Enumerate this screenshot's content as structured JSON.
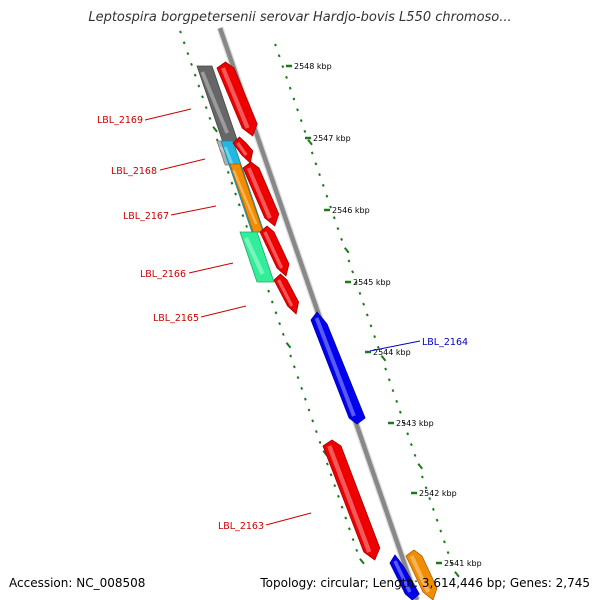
{
  "title": "Leptospira borgpetersenii serovar Hardjo-bovis L550 chromoso...",
  "footer": {
    "accession": "Accession: NC_008508",
    "topology": "Topology: circular; Length: 3,614,446 bp; Genes: 2,745"
  },
  "colors": {
    "backbone": "#888888",
    "forward_strand_label": "#cc0000",
    "reverse_strand_label": "#0000bb",
    "tick": "#1a7a1a",
    "gene_red": "#ee0000",
    "gene_blue": "#0000ee",
    "gene_gray": "#666666",
    "gene_cyan": "#22b8e0",
    "gene_orange": "#f28c00",
    "gene_green": "#33ee99",
    "gene_lightgray": "#b0b0b0"
  },
  "scale": {
    "tick_labels": [
      "2548 kbp",
      "2547 kbp",
      "2546 kbp",
      "2545 kbp",
      "2544 kbp",
      "2543 kbp",
      "2542 kbp",
      "2541 kbp"
    ]
  },
  "gene_labels": [
    {
      "text": "LBL_2169",
      "strand": "forward"
    },
    {
      "text": "LBL_2168",
      "strand": "forward"
    },
    {
      "text": "LBL_2167",
      "strand": "forward"
    },
    {
      "text": "LBL_2166",
      "strand": "forward"
    },
    {
      "text": "LBL_2165",
      "strand": "forward"
    },
    {
      "text": "LBL_2164",
      "strand": "reverse"
    },
    {
      "text": "LBL_2163",
      "strand": "forward"
    }
  ],
  "features": [
    {
      "name": "feature-gray",
      "color": "gene_gray"
    },
    {
      "name": "feature-red-2169",
      "color": "gene_red"
    },
    {
      "name": "feature-lightgray",
      "color": "gene_lightgray"
    },
    {
      "name": "feature-cyan",
      "color": "gene_cyan"
    },
    {
      "name": "feature-red-2168",
      "color": "gene_red"
    },
    {
      "name": "feature-orange",
      "color": "gene_orange"
    },
    {
      "name": "feature-red-2167",
      "color": "gene_red"
    },
    {
      "name": "feature-green",
      "color": "gene_green"
    },
    {
      "name": "feature-red-2166",
      "color": "gene_red"
    },
    {
      "name": "feature-red-2165",
      "color": "gene_red"
    },
    {
      "name": "feature-blue-2164",
      "color": "gene_blue"
    },
    {
      "name": "feature-red-2163",
      "color": "gene_red"
    },
    {
      "name": "feature-blue-bottom",
      "color": "gene_blue"
    },
    {
      "name": "feature-orange-bottom",
      "color": "gene_orange"
    }
  ]
}
